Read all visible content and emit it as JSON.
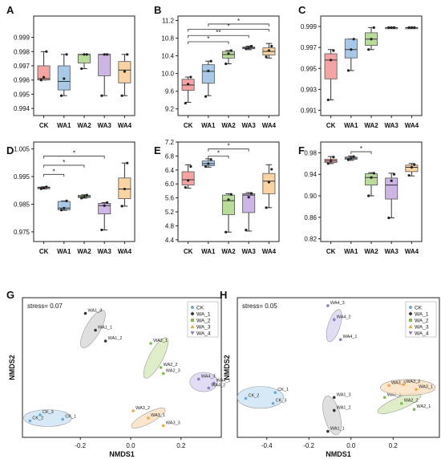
{
  "colors": {
    "CK": "#f5a3a3",
    "WA1": "#a8c8e8",
    "WA2": "#b9dc9b",
    "WA3": "#cdb5e6",
    "WA4": "#f9d3a2",
    "axis": "#222222",
    "point": "#222222",
    "ellipse_CK": "#c9e1f3",
    "ellipse_WA_1": "#d4d4d4",
    "ellipse_WA_2": "#d4e8b6",
    "ellipse_WA_3": "#fbdcbc",
    "ellipse_WA_4": "#d8d0f0"
  },
  "chart_data": [
    {
      "panel": "A",
      "type": "box",
      "categories": [
        "CK",
        "WA1",
        "WA2",
        "WA3",
        "WA4"
      ],
      "ylim": [
        0.9935,
        1.0005
      ],
      "yticks": [
        0.994,
        0.995,
        0.996,
        0.997,
        0.998,
        0.999
      ],
      "ytick_labels": [
        "0.994",
        "0.995",
        "0.996",
        "0.997",
        "0.998",
        "0.999"
      ],
      "boxes": [
        {
          "q1": 0.996,
          "median": 0.9961,
          "q3": 0.997,
          "low": 0.996,
          "high": 0.998,
          "points": [
            0.996,
            0.9962,
            0.998
          ]
        },
        {
          "q1": 0.9953,
          "median": 0.9959,
          "q3": 0.997,
          "low": 0.9949,
          "high": 0.9978,
          "points": [
            0.9949,
            0.9961,
            0.9978
          ]
        },
        {
          "q1": 0.9972,
          "median": 0.9978,
          "q3": 0.9978,
          "low": 0.9968,
          "high": 0.9978,
          "points": [
            0.9968,
            0.9978,
            0.9978
          ]
        },
        {
          "q1": 0.9963,
          "median": 0.9978,
          "q3": 0.9978,
          "low": 0.9949,
          "high": 0.9978,
          "points": [
            0.9949,
            0.9978,
            0.9978
          ]
        },
        {
          "q1": 0.9958,
          "median": 0.9967,
          "q3": 0.9973,
          "low": 0.9949,
          "high": 0.9978,
          "points": [
            0.9949,
            0.9966,
            0.9978
          ]
        }
      ],
      "sig": []
    },
    {
      "panel": "B",
      "type": "box",
      "categories": [
        "CK",
        "WA1",
        "WA2",
        "WA3",
        "WA4"
      ],
      "ylim": [
        9.05,
        11.3
      ],
      "yticks": [
        9.2,
        9.6,
        10.0,
        10.4,
        10.8,
        11.2
      ],
      "ytick_labels": [
        "9.2",
        "9.6",
        "10.0",
        "10.4",
        "10.8",
        "11.2"
      ],
      "boxes": [
        {
          "q1": 9.62,
          "median": 9.74,
          "q3": 9.87,
          "low": 9.35,
          "high": 9.92,
          "points": [
            9.33,
            9.76,
            9.92
          ]
        },
        {
          "q1": 9.78,
          "median": 10.05,
          "q3": 10.2,
          "low": 9.5,
          "high": 10.28,
          "points": [
            9.48,
            10.06,
            10.28
          ]
        },
        {
          "q1": 10.35,
          "median": 10.43,
          "q3": 10.5,
          "low": 10.22,
          "high": 10.52,
          "points": [
            10.22,
            10.45,
            10.52
          ]
        },
        {
          "q1": 10.56,
          "median": 10.58,
          "q3": 10.6,
          "low": 10.54,
          "high": 10.62,
          "points": [
            10.56,
            10.58,
            10.62
          ]
        },
        {
          "q1": 10.42,
          "median": 10.5,
          "q3": 10.58,
          "low": 10.35,
          "high": 10.68,
          "points": [
            10.38,
            10.52,
            10.62
          ]
        }
      ],
      "sig": [
        {
          "from": 0,
          "to": 2,
          "y": 10.72,
          "label": "*"
        },
        {
          "from": 0,
          "to": 3,
          "y": 10.86,
          "label": "**"
        },
        {
          "from": 0,
          "to": 4,
          "y": 11.0,
          "label": "*"
        },
        {
          "from": 1,
          "to": 4,
          "y": 11.12,
          "label": "*"
        }
      ]
    },
    {
      "panel": "C",
      "type": "box",
      "categories": [
        "CK",
        "WA1",
        "WA2",
        "WA3",
        "WA4"
      ],
      "ylim": [
        0.9905,
        1.0
      ],
      "yticks": [
        0.991,
        0.993,
        0.995,
        0.997,
        0.999
      ],
      "ytick_labels": [
        "0.991",
        "0.993",
        "0.995",
        "0.997",
        "0.999"
      ],
      "boxes": [
        {
          "q1": 0.994,
          "median": 0.9958,
          "q3": 0.9964,
          "low": 0.992,
          "high": 0.9968,
          "points": [
            0.992,
            0.9958,
            0.9967
          ]
        },
        {
          "q1": 0.996,
          "median": 0.9968,
          "q3": 0.9978,
          "low": 0.9948,
          "high": 0.9978,
          "points": [
            0.9948,
            0.9968,
            0.9978
          ]
        },
        {
          "q1": 0.9972,
          "median": 0.9978,
          "q3": 0.9984,
          "low": 0.9968,
          "high": 0.9989,
          "points": [
            0.9968,
            0.9978,
            0.9989
          ]
        },
        {
          "q1": 0.9989,
          "median": 0.9989,
          "q3": 0.9989,
          "low": 0.9989,
          "high": 0.9989,
          "points": [
            0.9989,
            0.9989,
            0.9989
          ]
        },
        {
          "q1": 0.9989,
          "median": 0.9989,
          "q3": 0.9989,
          "low": 0.9989,
          "high": 0.9989,
          "points": [
            0.9989,
            0.9989,
            0.9989
          ]
        }
      ],
      "sig": []
    },
    {
      "panel": "D",
      "type": "box",
      "categories": [
        "CK",
        "WA1",
        "WA2",
        "WA3",
        "WA4"
      ],
      "ylim": [
        0.9715,
        1.0075
      ],
      "yticks": [
        0.975,
        0.985,
        0.995,
        1.005
      ],
      "ytick_labels": [
        "0.975",
        "0.985",
        "0.995",
        "1.005"
      ],
      "boxes": [
        {
          "q1": 0.9906,
          "median": 0.991,
          "q3": 0.9912,
          "low": 0.9905,
          "high": 0.9913,
          "points": [
            0.9906,
            0.991,
            0.9913
          ]
        },
        {
          "q1": 0.983,
          "median": 0.9836,
          "q3": 0.986,
          "low": 0.9828,
          "high": 0.9862,
          "points": [
            0.9829,
            0.9836,
            0.9862
          ]
        },
        {
          "q1": 0.9874,
          "median": 0.9878,
          "q3": 0.9882,
          "low": 0.9872,
          "high": 0.9884,
          "points": [
            0.9872,
            0.9878,
            0.9883
          ]
        },
        {
          "q1": 0.9815,
          "median": 0.9845,
          "q3": 0.9853,
          "low": 0.9757,
          "high": 0.9856,
          "points": [
            0.9757,
            0.9845,
            0.9856
          ]
        },
        {
          "q1": 0.987,
          "median": 0.9905,
          "q3": 0.9945,
          "low": 0.9843,
          "high": 0.9999,
          "points": [
            0.9843,
            0.9905,
            0.9999
          ]
        }
      ],
      "sig": [
        {
          "from": 0,
          "to": 1,
          "y": 0.9958,
          "label": "*"
        },
        {
          "from": 0,
          "to": 2,
          "y": 0.9991,
          "label": "*"
        },
        {
          "from": 0,
          "to": 3,
          "y": 1.0024,
          "label": "*"
        }
      ]
    },
    {
      "panel": "E",
      "type": "box",
      "categories": [
        "CK",
        "WA1",
        "WA2",
        "WA3",
        "WA4"
      ],
      "ylim": [
        4.35,
        7.2
      ],
      "yticks": [
        4.4,
        4.8,
        5.2,
        5.6,
        6.0,
        6.4,
        6.8,
        7.2
      ],
      "ytick_labels": [
        "4.4",
        "4.8",
        "5.2",
        "5.6",
        "6.0",
        "6.4",
        "6.8",
        "7.2"
      ],
      "boxes": [
        {
          "q1": 5.97,
          "median": 6.12,
          "q3": 6.35,
          "low": 5.88,
          "high": 6.55,
          "points": [
            5.9,
            6.1,
            6.5
          ]
        },
        {
          "q1": 6.52,
          "median": 6.58,
          "q3": 6.66,
          "low": 6.48,
          "high": 6.72,
          "points": [
            6.5,
            6.58,
            6.7
          ]
        },
        {
          "q1": 5.12,
          "median": 5.52,
          "q3": 5.68,
          "low": 4.62,
          "high": 5.72,
          "points": [
            4.62,
            5.55,
            5.7
          ]
        },
        {
          "q1": 5.18,
          "median": 5.68,
          "q3": 5.72,
          "low": 4.65,
          "high": 5.75,
          "points": [
            4.68,
            5.62,
            5.73
          ]
        },
        {
          "q1": 5.72,
          "median": 6.08,
          "q3": 6.3,
          "low": 5.32,
          "high": 6.55,
          "points": [
            5.32,
            6.05,
            6.42
          ]
        }
      ],
      "sig": [
        {
          "from": 1,
          "to": 2,
          "y": 6.8,
          "label": "*"
        },
        {
          "from": 1,
          "to": 3,
          "y": 7.0,
          "label": "*"
        }
      ]
    },
    {
      "panel": "F",
      "type": "box",
      "categories": [
        "CK",
        "WA1",
        "WA2",
        "WA3",
        "WA4"
      ],
      "ylim": [
        0.815,
        1.0
      ],
      "yticks": [
        0.82,
        0.86,
        0.9,
        0.94,
        0.98
      ],
      "ytick_labels": [
        "0.82",
        "0.86",
        "0.90",
        "0.94",
        "0.98"
      ],
      "boxes": [
        {
          "q1": 0.962,
          "median": 0.965,
          "q3": 0.968,
          "low": 0.96,
          "high": 0.973,
          "points": [
            0.96,
            0.965,
            0.972
          ]
        },
        {
          "q1": 0.968,
          "median": 0.97,
          "q3": 0.972,
          "low": 0.966,
          "high": 0.974,
          "points": [
            0.967,
            0.97,
            0.973
          ]
        },
        {
          "q1": 0.92,
          "median": 0.934,
          "q3": 0.941,
          "low": 0.9,
          "high": 0.943,
          "points": [
            0.9,
            0.934,
            0.942
          ]
        },
        {
          "q1": 0.894,
          "median": 0.92,
          "q3": 0.933,
          "low": 0.859,
          "high": 0.942,
          "points": [
            0.859,
            0.928,
            0.94
          ]
        },
        {
          "q1": 0.945,
          "median": 0.953,
          "q3": 0.957,
          "low": 0.937,
          "high": 0.96,
          "points": [
            0.938,
            0.953,
            0.958
          ]
        }
      ],
      "sig": [
        {
          "from": 1,
          "to": 2,
          "y": 0.982,
          "label": "*"
        }
      ]
    },
    {
      "panel": "G",
      "type": "scatter",
      "xlabel": "NMDS1",
      "ylabel": "NMDS2",
      "stress_label": "stress= 0.07",
      "xlim": [
        -0.43,
        0.36
      ],
      "ylim": [
        -0.23,
        0.35
      ],
      "xticks": [
        -0.2,
        0.0,
        0.2
      ],
      "xtick_labels": [
        "-0.2",
        "0.0",
        "0.2"
      ],
      "legend": [
        "CK",
        "WA_1",
        "WA_2",
        "WA_3",
        "WA_4"
      ],
      "groups": [
        {
          "name": "CK",
          "ellipse": {
            "cx": -0.33,
            "cy": -0.15,
            "rx": 0.095,
            "ry": 0.035,
            "rot": 0
          },
          "points": [
            {
              "x": -0.36,
              "y": -0.137,
              "label": "CK_3"
            },
            {
              "x": -0.4,
              "y": -0.162,
              "label": "CK_2"
            },
            {
              "x": -0.27,
              "y": -0.155,
              "label": "CK_1"
            }
          ]
        },
        {
          "name": "WA_1",
          "ellipse": {
            "cx": -0.15,
            "cy": 0.22,
            "rx": 0.085,
            "ry": 0.03,
            "rot": 60
          },
          "points": [
            {
              "x": -0.18,
              "y": 0.285,
              "label": "WA1_3"
            },
            {
              "x": -0.14,
              "y": 0.215,
              "label": "WA1_1"
            },
            {
              "x": -0.1,
              "y": 0.17,
              "label": "WA1_2"
            }
          ]
        },
        {
          "name": "WA_2",
          "ellipse": {
            "cx": 0.1,
            "cy": 0.1,
            "rx": 0.09,
            "ry": 0.028,
            "rot": 62
          },
          "points": [
            {
              "x": 0.08,
              "y": 0.16,
              "label": "WA2_1"
            },
            {
              "x": 0.12,
              "y": 0.06,
              "label": "WA2_2"
            },
            {
              "x": 0.13,
              "y": 0.035,
              "label": "WA2_3"
            }
          ]
        },
        {
          "name": "WA_3",
          "ellipse": {
            "cx": 0.07,
            "cy": -0.15,
            "rx": 0.075,
            "ry": 0.022,
            "rot": 28
          },
          "points": [
            {
              "x": 0.01,
              "y": -0.12,
              "label": "WA3_2"
            },
            {
              "x": 0.07,
              "y": -0.15,
              "label": "WA3_1"
            },
            {
              "x": 0.13,
              "y": -0.182,
              "label": "WA3_3"
            }
          ]
        },
        {
          "name": "WA_4",
          "ellipse": {
            "cx": 0.29,
            "cy": 0.0,
            "rx": 0.055,
            "ry": 0.04,
            "rot": 0
          },
          "points": [
            {
              "x": 0.27,
              "y": 0.012,
              "label": "WA4_3"
            },
            {
              "x": 0.33,
              "y": -0.005,
              "label": "WA4_1"
            },
            {
              "x": 0.31,
              "y": -0.025,
              "label": "WA4_2"
            }
          ]
        }
      ]
    },
    {
      "panel": "H",
      "type": "scatter",
      "xlabel": "NMDS1",
      "ylabel": "NMDS2",
      "stress_label": "stress= 0.05",
      "xlim": [
        -0.54,
        0.42
      ],
      "ylim": [
        -0.3,
        0.4
      ],
      "xticks": [
        -0.4,
        -0.2,
        0.0,
        0.2
      ],
      "xtick_labels": [
        "-0.4",
        "-0.2",
        "0.0",
        "0.2"
      ],
      "legend": [
        "CK",
        "WA_1",
        "WA_2",
        "WA_3",
        "WA_4"
      ],
      "groups": [
        {
          "name": "CK",
          "ellipse": {
            "cx": -0.43,
            "cy": -0.1,
            "rx": 0.11,
            "ry": 0.055,
            "rot": 0
          },
          "points": [
            {
              "x": -0.36,
              "y": -0.075,
              "label": "CK_1"
            },
            {
              "x": -0.5,
              "y": -0.105,
              "label": "CK_2"
            },
            {
              "x": -0.37,
              "y": -0.13,
              "label": "CK_3"
            }
          ]
        },
        {
          "name": "WA_1",
          "ellipse": {
            "cx": -0.09,
            "cy": -0.19,
            "rx": 0.095,
            "ry": 0.04,
            "rot": -75
          },
          "points": [
            {
              "x": -0.08,
              "y": -0.1,
              "label": "WA1_3"
            },
            {
              "x": -0.08,
              "y": -0.165,
              "label": "WA1_2"
            },
            {
              "x": -0.11,
              "y": -0.27,
              "label": "WA1_1"
            }
          ]
        },
        {
          "name": "WA_2",
          "ellipse": {
            "cx": 0.23,
            "cy": -0.13,
            "rx": 0.11,
            "ry": 0.03,
            "rot": 22
          },
          "points": [
            {
              "x": 0.16,
              "y": -0.1,
              "label": "WA2_3"
            },
            {
              "x": 0.24,
              "y": -0.13,
              "label": "WA2_2"
            },
            {
              "x": 0.3,
              "y": -0.16,
              "label": "WA2_1"
            }
          ]
        },
        {
          "name": "WA_3",
          "ellipse": {
            "cx": 0.27,
            "cy": -0.05,
            "rx": 0.13,
            "ry": 0.04,
            "rot": 0
          },
          "points": [
            {
              "x": 0.18,
              "y": -0.04,
              "label": "WA3_3"
            },
            {
              "x": 0.25,
              "y": -0.035,
              "label": "WA3_2"
            },
            {
              "x": 0.31,
              "y": -0.06,
              "label": "WA3_1"
            }
          ]
        },
        {
          "name": "WA_4",
          "ellipse": {
            "cx": -0.08,
            "cy": 0.26,
            "rx": 0.08,
            "ry": 0.03,
            "rot": 72
          },
          "points": [
            {
              "x": -0.11,
              "y": 0.36,
              "label": "WA4_3"
            },
            {
              "x": -0.08,
              "y": 0.29,
              "label": "WA4_2"
            },
            {
              "x": -0.05,
              "y": 0.19,
              "label": "WA4_1"
            }
          ]
        }
      ]
    }
  ]
}
